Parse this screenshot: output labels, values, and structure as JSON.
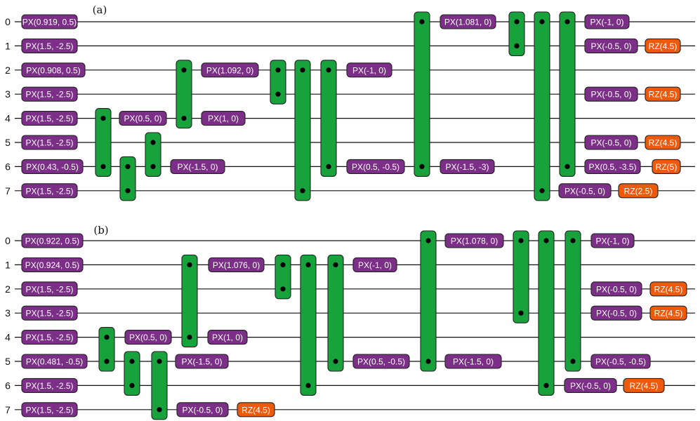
{
  "colors": {
    "px_fill": "#7b2f86",
    "rz_fill": "#ee5a0c",
    "cz_fill": "#18a23c",
    "outline": "#222222",
    "wire": "#111111"
  },
  "panels": [
    {
      "label": "(a)",
      "qubits": [
        "0",
        "1",
        "2",
        "3",
        "4",
        "5",
        "6",
        "7"
      ],
      "gates": [
        {
          "type": "PX",
          "q": 0,
          "text": "PX(0.919, 0.5)"
        },
        {
          "type": "PX",
          "q": 1,
          "text": "PX(1.5, -2.5)"
        },
        {
          "type": "PX",
          "q": 2,
          "text": "PX(0.908, 0.5)"
        },
        {
          "type": "PX",
          "q": 3,
          "text": "PX(1.5, -2.5)"
        },
        {
          "type": "PX",
          "q": 4,
          "text": "PX(1.5, -2.5)"
        },
        {
          "type": "PX",
          "q": 5,
          "text": "PX(1.5, -2.5)"
        },
        {
          "type": "PX",
          "q": 6,
          "text": "PX(0.43, -0.5)"
        },
        {
          "type": "PX",
          "q": 7,
          "text": "PX(1.5, -2.5)"
        },
        {
          "type": "CZ",
          "qs": [
            4,
            6
          ]
        },
        {
          "type": "CZ",
          "qs": [
            6,
            7
          ]
        },
        {
          "type": "PX",
          "q": 4,
          "text": "PX(0.5, 0)"
        },
        {
          "type": "CZ",
          "qs": [
            5,
            6
          ]
        },
        {
          "type": "PX",
          "q": 6,
          "text": "PX(-1.5, 0)"
        },
        {
          "type": "CZ",
          "qs": [
            2,
            4
          ]
        },
        {
          "type": "PX",
          "q": 2,
          "text": "PX(1.092, 0)"
        },
        {
          "type": "PX",
          "q": 4,
          "text": "PX(1, 0)"
        },
        {
          "type": "CZ",
          "qs": [
            2,
            3
          ]
        },
        {
          "type": "CZ",
          "qs": [
            2,
            7
          ]
        },
        {
          "type": "CZ",
          "qs": [
            2,
            6
          ]
        },
        {
          "type": "PX",
          "q": 2,
          "text": "PX(-1, 0)"
        },
        {
          "type": "PX",
          "q": 6,
          "text": "PX(0.5, -0.5)"
        },
        {
          "type": "CZ",
          "qs": [
            0,
            6
          ]
        },
        {
          "type": "PX",
          "q": 0,
          "text": "PX(1.081, 0)"
        },
        {
          "type": "PX",
          "q": 6,
          "text": "PX(-1.5, -3)"
        },
        {
          "type": "CZ",
          "qs": [
            0,
            1
          ]
        },
        {
          "type": "CZ",
          "qs": [
            0,
            7
          ]
        },
        {
          "type": "CZ",
          "qs": [
            0,
            6
          ]
        },
        {
          "type": "PX",
          "q": 0,
          "text": "PX(-1, 0)"
        },
        {
          "type": "PX",
          "q": 1,
          "text": "PX(-0.5, 0)"
        },
        {
          "type": "RZ",
          "q": 1,
          "text": "RZ(4.5)"
        },
        {
          "type": "PX",
          "q": 3,
          "text": "PX(-0.5, 0)"
        },
        {
          "type": "RZ",
          "q": 3,
          "text": "RZ(4.5)"
        },
        {
          "type": "PX",
          "q": 5,
          "text": "PX(-0.5, 0)"
        },
        {
          "type": "RZ",
          "q": 5,
          "text": "RZ(4.5)"
        },
        {
          "type": "PX",
          "q": 6,
          "text": "PX(0.5, -3.5)"
        },
        {
          "type": "RZ",
          "q": 6,
          "text": "RZ(5)"
        },
        {
          "type": "PX",
          "q": 7,
          "text": "PX(-0.5, 0)"
        },
        {
          "type": "RZ",
          "q": 7,
          "text": "RZ(2.5)"
        }
      ]
    },
    {
      "label": "(b)",
      "qubits": [
        "0",
        "1",
        "2",
        "3",
        "4",
        "5",
        "6",
        "7"
      ],
      "gates": [
        {
          "type": "PX",
          "q": 0,
          "text": "PX(0.922, 0.5)"
        },
        {
          "type": "PX",
          "q": 1,
          "text": "PX(0.924, 0.5)"
        },
        {
          "type": "PX",
          "q": 2,
          "text": "PX(1.5, -2.5)"
        },
        {
          "type": "PX",
          "q": 3,
          "text": "PX(1.5, -2.5)"
        },
        {
          "type": "PX",
          "q": 4,
          "text": "PX(1.5, -2.5)"
        },
        {
          "type": "PX",
          "q": 5,
          "text": "PX(0.481, -0.5)"
        },
        {
          "type": "PX",
          "q": 6,
          "text": "PX(1.5, -2.5)"
        },
        {
          "type": "PX",
          "q": 7,
          "text": "PX(1.5, -2.5)"
        },
        {
          "type": "CZ",
          "qs": [
            4,
            5
          ]
        },
        {
          "type": "CZ",
          "qs": [
            5,
            6
          ]
        },
        {
          "type": "PX",
          "q": 4,
          "text": "PX(0.5, 0)"
        },
        {
          "type": "CZ",
          "qs": [
            5,
            7
          ]
        },
        {
          "type": "PX",
          "q": 5,
          "text": "PX(-1.5, 0)"
        },
        {
          "type": "PX",
          "q": 7,
          "text": "PX(-0.5, 0)"
        },
        {
          "type": "RZ",
          "q": 7,
          "text": "RZ(4.5)"
        },
        {
          "type": "CZ",
          "qs": [
            1,
            4
          ]
        },
        {
          "type": "PX",
          "q": 1,
          "text": "PX(1.076, 0)"
        },
        {
          "type": "PX",
          "q": 4,
          "text": "PX(1, 0)"
        },
        {
          "type": "CZ",
          "qs": [
            1,
            2
          ]
        },
        {
          "type": "CZ",
          "qs": [
            1,
            6
          ]
        },
        {
          "type": "CZ",
          "qs": [
            1,
            5
          ]
        },
        {
          "type": "PX",
          "q": 1,
          "text": "PX(-1, 0)"
        },
        {
          "type": "PX",
          "q": 5,
          "text": "PX(0.5, -0.5)"
        },
        {
          "type": "CZ",
          "qs": [
            0,
            5
          ]
        },
        {
          "type": "PX",
          "q": 0,
          "text": "PX(1.078, 0)"
        },
        {
          "type": "PX",
          "q": 5,
          "text": "PX(-1.5, 0)"
        },
        {
          "type": "CZ",
          "qs": [
            0,
            3
          ]
        },
        {
          "type": "CZ",
          "qs": [
            0,
            6
          ]
        },
        {
          "type": "CZ",
          "qs": [
            0,
            5
          ]
        },
        {
          "type": "PX",
          "q": 0,
          "text": "PX(-1, 0)"
        },
        {
          "type": "PX",
          "q": 2,
          "text": "PX(-0.5, 0)"
        },
        {
          "type": "RZ",
          "q": 2,
          "text": "RZ(4.5)"
        },
        {
          "type": "PX",
          "q": 3,
          "text": "PX(-0.5, 0)"
        },
        {
          "type": "RZ",
          "q": 3,
          "text": "RZ(4.5)"
        },
        {
          "type": "PX",
          "q": 5,
          "text": "PX(-0.5, -0.5)"
        },
        {
          "type": "PX",
          "q": 6,
          "text": "PX(-0.5, 0)"
        },
        {
          "type": "RZ",
          "q": 6,
          "text": "RZ(4.5)"
        }
      ]
    }
  ]
}
